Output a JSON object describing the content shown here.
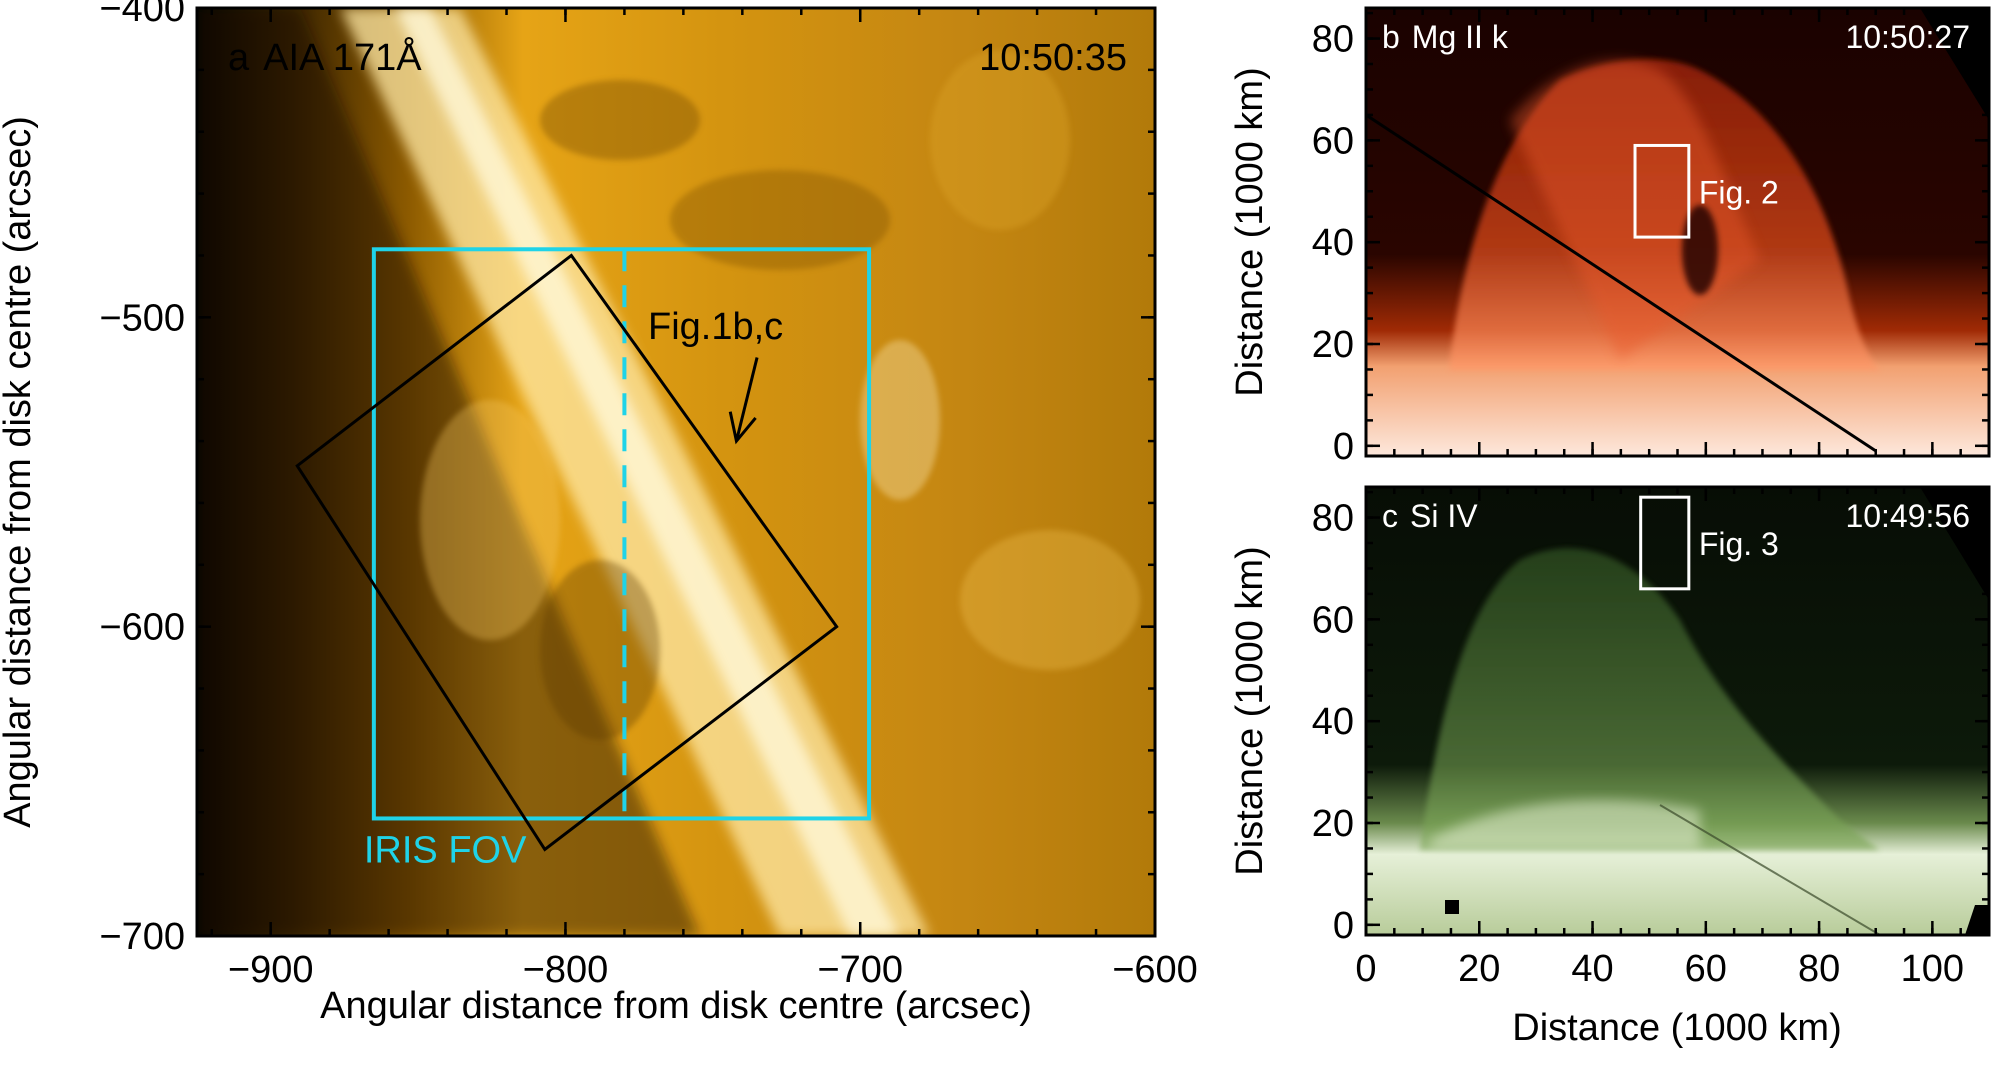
{
  "chart_data": [
    {
      "type": "image",
      "panel_label": "a",
      "channel": "AIA 171Å",
      "time": "10:50:35",
      "xlabel": "Angular distance from disk centre (arcsec)",
      "ylabel": "Angular distance from disk centre (arcsec)",
      "xlim": [
        -925,
        -600
      ],
      "ylim": [
        -700,
        -400
      ],
      "xticks": [
        -900,
        -800,
        -700,
        -600
      ],
      "xtick_labels": [
        "−900",
        "−800",
        "−700",
        "−600"
      ],
      "yticks": [
        -700,
        -600,
        -500,
        -400
      ],
      "ytick_labels": [
        "−700",
        "−600",
        "−500",
        "−400"
      ],
      "iris_fov": {
        "label": "IRIS FOV",
        "color": "#1fd3e8",
        "x": [
          -865,
          -697
        ],
        "y": [
          -662,
          -478
        ],
        "slit_x": -780
      },
      "zoom_box": {
        "label": "Fig.1b,c",
        "color": "#000000",
        "corners": [
          [
            -798,
            -480
          ],
          [
            -708,
            -600
          ],
          [
            -807,
            -672
          ],
          [
            -891,
            -548
          ]
        ]
      },
      "arrow": {
        "from": [
          -735,
          -513
        ],
        "to": [
          -742,
          -540
        ]
      }
    },
    {
      "type": "image",
      "panel_label": "b",
      "channel": "Mg II k",
      "time": "10:50:27",
      "ylabel": "Distance (1000 km)",
      "xlim": [
        0,
        110
      ],
      "ylim": [
        -2,
        86
      ],
      "yticks": [
        0,
        20,
        40,
        60,
        80
      ],
      "ytick_labels": [
        "0",
        "20",
        "40",
        "60",
        "80"
      ],
      "box": {
        "label": "Fig. 2",
        "x": [
          47.5,
          57
        ],
        "y": [
          41,
          59
        ]
      }
    },
    {
      "type": "image",
      "panel_label": "c",
      "channel": "Si IV",
      "time": "10:49:56",
      "xlabel": "Distance (1000 km)",
      "ylabel": "Distance (1000 km)",
      "xlim": [
        0,
        110
      ],
      "ylim": [
        -2,
        86
      ],
      "xticks": [
        0,
        20,
        40,
        60,
        80,
        100
      ],
      "xtick_labels": [
        "0",
        "20",
        "40",
        "60",
        "80",
        "100"
      ],
      "yticks": [
        0,
        20,
        40,
        60,
        80
      ],
      "ytick_labels": [
        "0",
        "20",
        "40",
        "60",
        "80"
      ],
      "box": {
        "label": "Fig. 3",
        "x": [
          48.5,
          57
        ],
        "y": [
          66,
          84
        ]
      }
    }
  ]
}
